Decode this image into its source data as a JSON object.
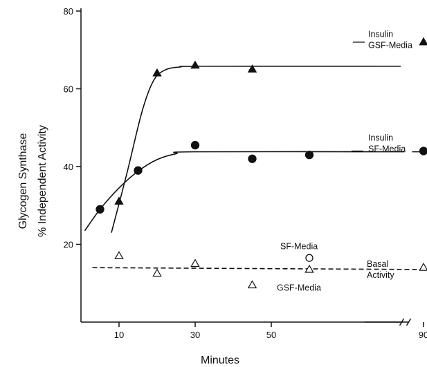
{
  "chart_data": {
    "type": "line",
    "xlabel": "Minutes",
    "ylabel": [
      "Glycogen Synthase",
      "% Independent Activity"
    ],
    "ylim": [
      0,
      80
    ],
    "xlim": [
      0,
      95
    ],
    "x_axis_break_after": 85,
    "x_ticks": [
      10,
      30,
      50,
      90
    ],
    "y_ticks": [
      20,
      40,
      60,
      80
    ],
    "grid": false,
    "series": [
      {
        "name": "Insulin GSF-Media",
        "label_lines": [
          "Insulin",
          "GSF-Media"
        ],
        "marker": "filled-triangle",
        "line": "solid",
        "points": [
          {
            "x": 10,
            "y": 31
          },
          {
            "x": 20,
            "y": 64
          },
          {
            "x": 30,
            "y": 66
          },
          {
            "x": 45,
            "y": 65
          },
          {
            "x": 90,
            "y": 72
          }
        ],
        "fit": [
          {
            "x": 8,
            "y": 23
          },
          {
            "x": 12,
            "y": 38
          },
          {
            "x": 16,
            "y": 54
          },
          {
            "x": 19,
            "y": 62
          },
          {
            "x": 22,
            "y": 64.8
          },
          {
            "x": 26,
            "y": 65.6
          },
          {
            "x": 32,
            "y": 65.8
          },
          {
            "x": 84,
            "y": 65.8
          }
        ]
      },
      {
        "name": "Insulin SF-Media",
        "label_lines": [
          "Insulin",
          "SF-Media"
        ],
        "marker": "filled-circle",
        "line": "solid",
        "points": [
          {
            "x": 5,
            "y": 29
          },
          {
            "x": 15,
            "y": 39
          },
          {
            "x": 30,
            "y": 45.5
          },
          {
            "x": 45,
            "y": 42
          },
          {
            "x": 60,
            "y": 43
          },
          {
            "x": 90,
            "y": 44
          }
        ],
        "fit": [
          {
            "x": 1,
            "y": 23.5
          },
          {
            "x": 5,
            "y": 29
          },
          {
            "x": 10,
            "y": 34.5
          },
          {
            "x": 15,
            "y": 38.8
          },
          {
            "x": 20,
            "y": 41.8
          },
          {
            "x": 25,
            "y": 43.3
          },
          {
            "x": 30,
            "y": 43.8
          },
          {
            "x": 85,
            "y": 43.8
          }
        ],
        "fit_after_break": [
          {
            "x": 87,
            "y": 43.8
          },
          {
            "x": 94,
            "y": 43.8
          }
        ]
      },
      {
        "name": "Basal Activity",
        "label_lines": [
          "Basal",
          "Activity"
        ],
        "line": "dashed",
        "fit": [
          {
            "x": 3,
            "y": 14
          },
          {
            "x": 94,
            "y": 13.5
          }
        ]
      },
      {
        "name": "GSF-Media",
        "marker": "open-triangle",
        "points": [
          {
            "x": 10,
            "y": 17
          },
          {
            "x": 20,
            "y": 12.5
          },
          {
            "x": 30,
            "y": 15
          },
          {
            "x": 45,
            "y": 9.5
          },
          {
            "x": 60,
            "y": 13.5
          },
          {
            "x": 90,
            "y": 14
          }
        ]
      },
      {
        "name": "SF-Media",
        "marker": "open-circle",
        "points": [
          {
            "x": 60,
            "y": 16.5
          }
        ]
      }
    ],
    "annotations": [
      "SF-Media",
      "GSF-Media"
    ]
  }
}
